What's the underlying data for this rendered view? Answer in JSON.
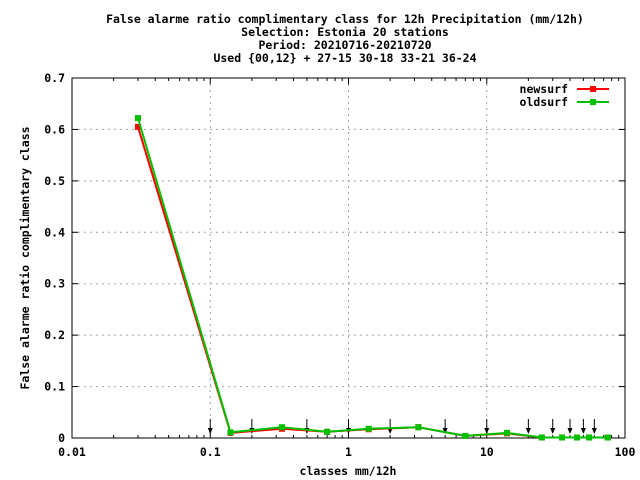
{
  "chart_data": {
    "type": "line",
    "title_lines": [
      "False alarme ratio complimentary class  for 12h Precipitation (mm/12h)",
      "Selection: Estonia     20 stations",
      "Period: 20210716-20210720",
      "Used {00,12} + 27-15 30-18 33-21 36-24"
    ],
    "xlabel": "classes mm/12h",
    "ylabel": "False alarme ratio complimentary class",
    "x_scale": "log",
    "xlim": [
      0.01,
      100
    ],
    "ylim": [
      0,
      0.7
    ],
    "x_ticks": [
      0.01,
      0.1,
      1,
      10,
      100
    ],
    "x_tick_labels": [
      "0.01",
      "0.1",
      "1",
      "10",
      "100"
    ],
    "y_ticks": [
      0,
      0.1,
      0.2,
      0.3,
      0.4,
      0.5,
      0.6,
      0.7
    ],
    "y_tick_labels": [
      "0",
      "0.1",
      "0.2",
      "0.3",
      "0.4",
      "0.5",
      "0.6",
      "0.7"
    ],
    "grid": true,
    "legend_position": "top-right",
    "class_thresholds": [
      0.1,
      0.2,
      0.5,
      1,
      2,
      5,
      10,
      20,
      30,
      40,
      50,
      60
    ],
    "series": [
      {
        "name": "newsurf",
        "color": "#ff0000",
        "x": [
          0.03,
          0.14,
          0.33,
          0.7,
          1.4,
          3.2,
          7,
          14,
          25,
          35,
          45,
          55,
          75
        ],
        "y": [
          0.605,
          0.01,
          0.018,
          0.012,
          0.017,
          0.021,
          0.004,
          0.009,
          0.001,
          0.001,
          0.001,
          0.001,
          0.001
        ]
      },
      {
        "name": "oldsurf",
        "color": "#00c000",
        "x": [
          0.03,
          0.14,
          0.33,
          0.7,
          1.4,
          3.2,
          7,
          14,
          25,
          35,
          45,
          55,
          75
        ],
        "y": [
          0.622,
          0.011,
          0.021,
          0.012,
          0.018,
          0.021,
          0.004,
          0.01,
          0.001,
          0.001,
          0.001,
          0.001,
          0.001
        ]
      }
    ]
  }
}
